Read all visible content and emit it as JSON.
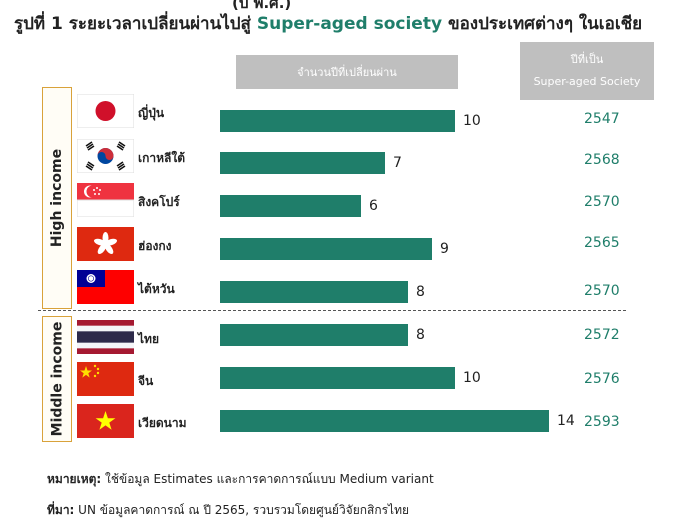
{
  "header": {
    "cutoff_text": "(ปี พ.ศ.)",
    "title_prefix": "รูปที่ 1 ระยะเวลาเปลี่ยนผ่านไปสู่ ",
    "title_accent": "Super-aged society",
    "title_suffix": " ของประเทศต่างๆ ในเอเชีย"
  },
  "columns": {
    "transition_years": "จำนวนปีที่เปลี่ยนผ่าน",
    "year_became_line1": "ปีที่เป็น",
    "year_became_line2": "Super-aged Society"
  },
  "groups": {
    "high": "High income",
    "middle": "Middle income"
  },
  "chart_data": {
    "type": "bar",
    "orientation": "horizontal",
    "categories": [
      "ญี่ปุ่น",
      "เกาหลีใต้",
      "สิงคโปร์",
      "ฮ่องกง",
      "ไต้หวัน",
      "ไทย",
      "จีน",
      "เวียดนาม"
    ],
    "values": [
      10,
      7,
      6,
      9,
      8,
      8,
      10,
      14
    ],
    "years": [
      "2547",
      "2568",
      "2570",
      "2565",
      "2570",
      "2572",
      "2576",
      "2593"
    ],
    "groups": [
      "High income",
      "High income",
      "High income",
      "High income",
      "High income",
      "Middle income",
      "Middle income",
      "Middle income"
    ],
    "bar_color": "#1f7e6a",
    "xlim": [
      0,
      14
    ],
    "grid": false
  },
  "flags": [
    "japan-flag-icon",
    "south-korea-flag-icon",
    "singapore-flag-icon",
    "hong-kong-flag-icon",
    "taiwan-flag-icon",
    "thailand-flag-icon",
    "china-flag-icon",
    "vietnam-flag-icon"
  ],
  "notes": {
    "note_label": "หมายเหตุ:",
    "note_text": " ใช้ข้อมูล Estimates และการคาดการณ์แบบ Medium variant",
    "source_label": "ที่มา:",
    "source_text": " UN ข้อมูลคาดการณ์ ณ ปี 2565, รวบรวมโดยศูนย์วิจัยกสิกรไทย"
  },
  "colors": {
    "accent": "#1f7e6a",
    "header_bg": "#bfbfbf",
    "group_border": "#d9a23a"
  }
}
